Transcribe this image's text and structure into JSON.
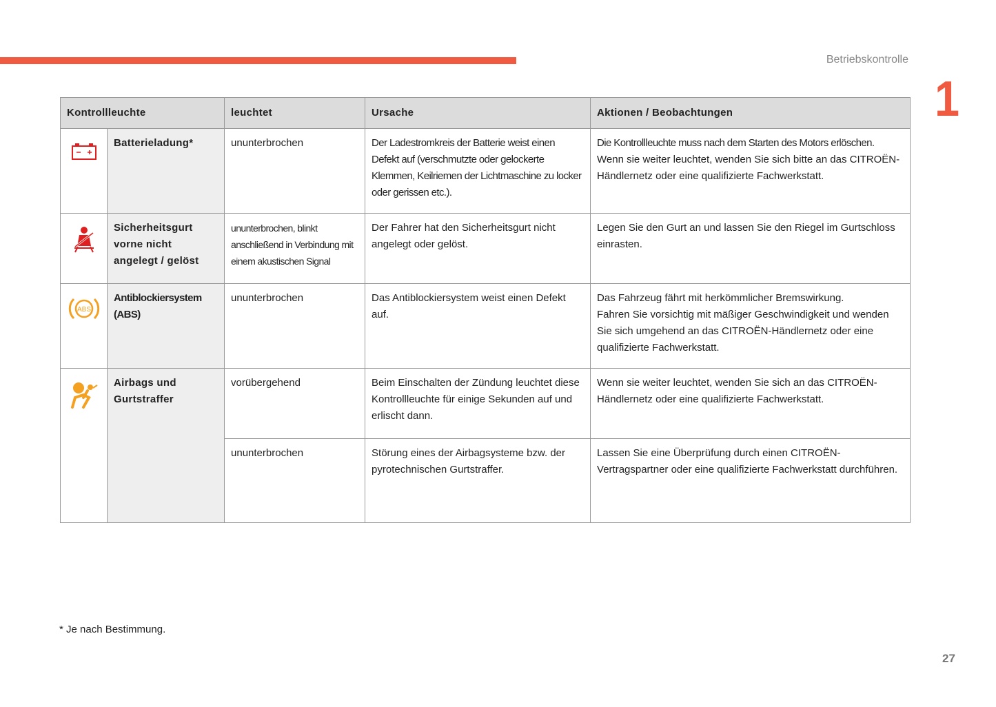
{
  "header": {
    "section": "Betriebskontrolle",
    "chapter": "1",
    "accent": "#f05a40"
  },
  "table": {
    "columns": [
      "Kontrollleuchte",
      "leuchtet",
      "Ursache",
      "Aktionen / Beobachtungen"
    ],
    "rows": [
      {
        "icon": "battery-icon",
        "label": "Batterieladung*",
        "status": "ununterbrochen",
        "cause": "Der Ladestromkreis der Batterie weist einen Defekt auf (verschmutzte oder gelockerte Klemmen, Keilriemen der Lichtmaschine zu locker oder gerissen etc.).",
        "action_bold": "Die Kontrollleuchte muss nach dem Starten des Motors erlöschen.",
        "action": "Wenn sie weiter leuchtet, wenden Sie sich bitte an das CITROËN-Händlernetz oder eine qualifizierte Fachwerkstatt."
      },
      {
        "icon": "seatbelt-icon",
        "label": "Sicherheitsgurt vorne nicht angelegt / gelöst",
        "status": "ununterbrochen, blinkt anschließend in Verbindung mit einem akustischen Signal",
        "cause": "Der Fahrer hat den Sicherheitsgurt nicht angelegt oder gelöst.",
        "action": "Legen Sie den Gurt an und lassen Sie den Riegel im Gurtschloss einrasten."
      },
      {
        "icon": "abs-icon",
        "icon_text": "ABS",
        "label": "Antiblockiersystem (ABS)",
        "status": "ununterbrochen",
        "cause": "Das Antiblockiersystem weist einen Defekt auf.",
        "action_bold": "Das Fahrzeug fährt mit herkömmlicher Bremswirkung.",
        "action": "Fahren Sie vorsichtig mit mäßiger Geschwindigkeit und wenden Sie sich umgehend an das CITROËN-Händlernetz oder eine qualifizierte Fachwerkstatt."
      },
      {
        "icon": "airbag-icon",
        "label": "Airbags und Gurtstraffer",
        "status": "vorübergehend",
        "cause": "Beim Einschalten der Zündung leuchtet diese Kontrollleuchte für einige Sekunden auf und erlischt dann.",
        "action": "Wenn sie weiter leuchtet, wenden Sie sich an das CITROËN-Händlernetz oder eine qualifizierte Fachwerkstatt.",
        "status2": "ununterbrochen",
        "cause2": "Störung eines der Airbagsysteme bzw. der pyrotechnischen Gurtstraffer.",
        "action2": "Lassen Sie eine Überprüfung durch einen CITROËN-Vertragspartner oder eine qualifizierte Fachwerkstatt durchführen."
      }
    ]
  },
  "footnote": "* Je nach Bestimmung.",
  "page_number": "27"
}
